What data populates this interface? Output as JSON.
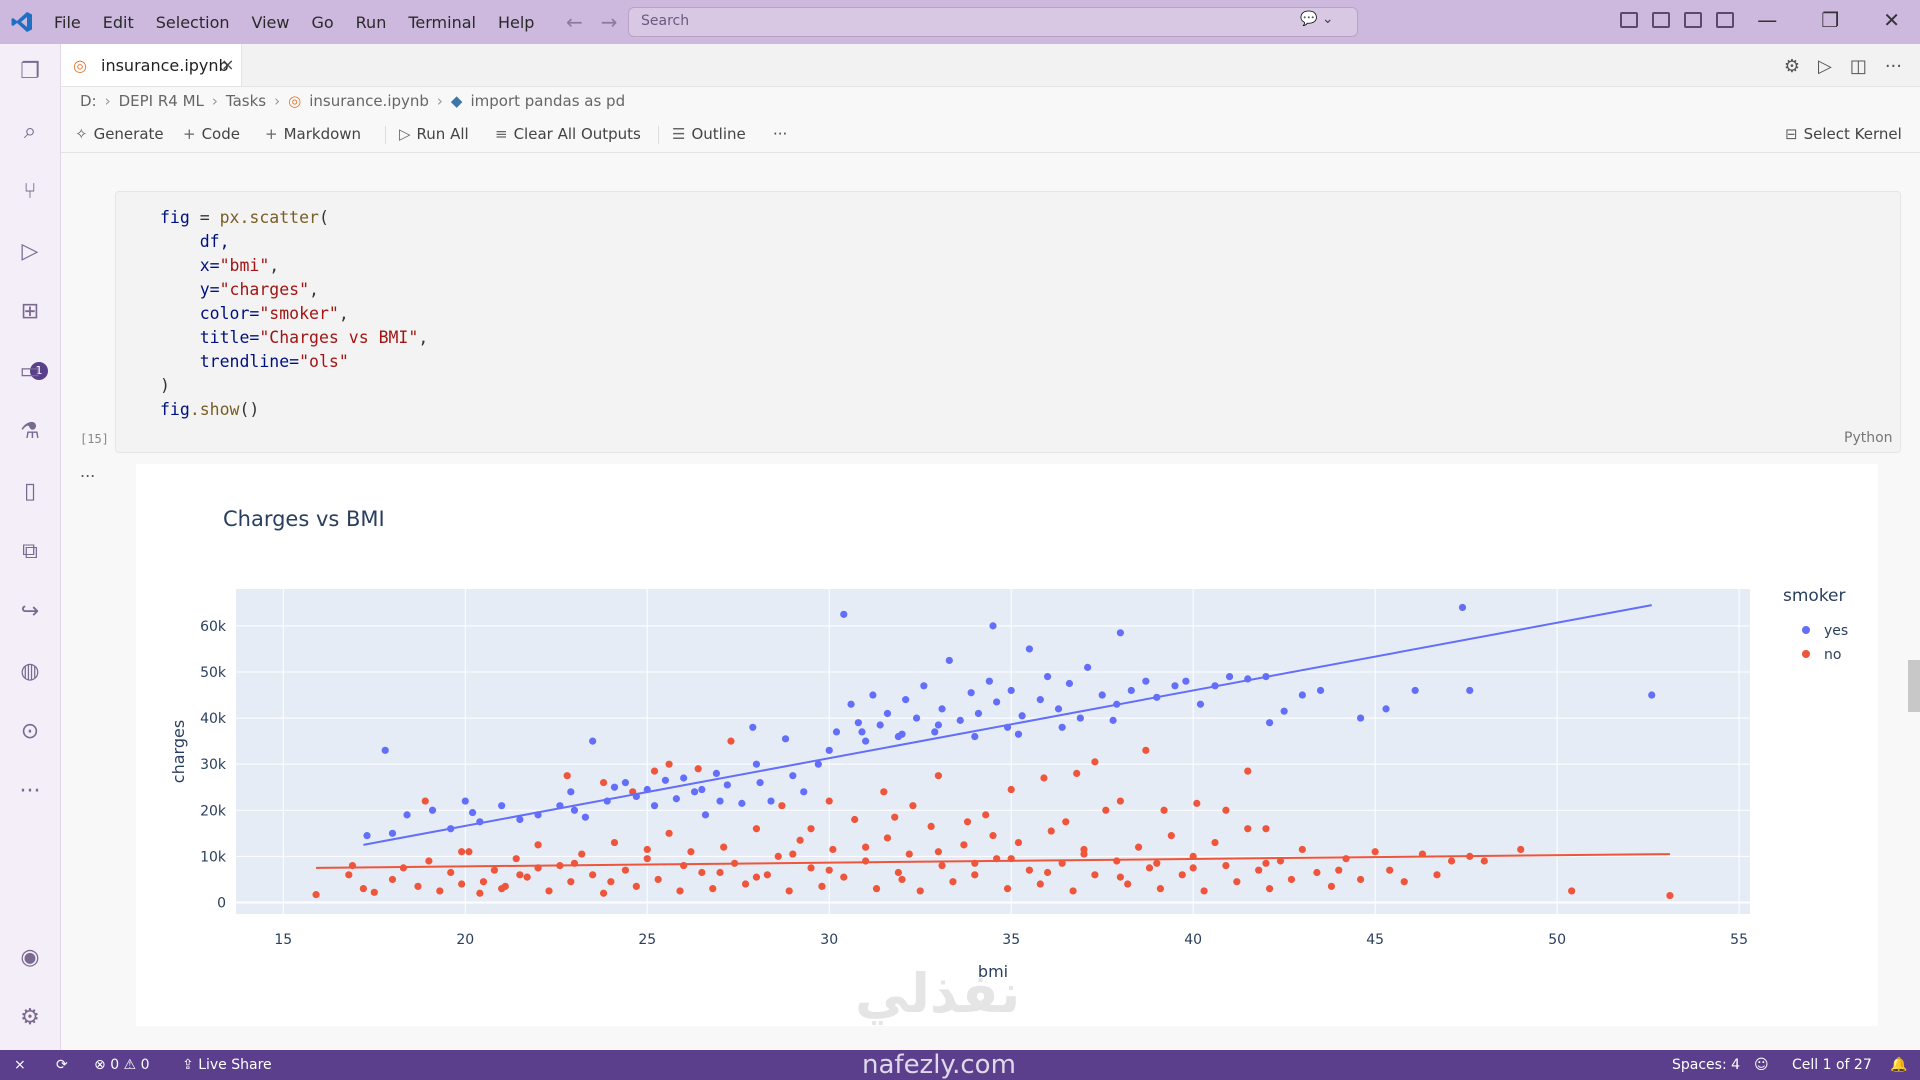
{
  "menu": [
    "File",
    "Edit",
    "Selection",
    "View",
    "Go",
    "Run",
    "Terminal",
    "Help"
  ],
  "search": {
    "placeholder": "Search"
  },
  "tab": {
    "label": "insurance.ipynb",
    "close": "×"
  },
  "breadcrumb": [
    "D:",
    "DEPI R4 ML",
    "Tasks",
    "insurance.ipynb",
    "import pandas as pd"
  ],
  "toolbar": {
    "generate": "Generate",
    "code": "Code",
    "markdown": "Markdown",
    "run_all": "Run All",
    "clear_outputs": "Clear All Outputs",
    "outline": "Outline",
    "more": "···",
    "select_kernel": "Select Kernel"
  },
  "cell": {
    "exec_count": "[15]",
    "language": "Python",
    "output_dots": "...",
    "code": {
      "l1_var": "fig",
      "l1_eq": " = ",
      "l1_fn": "px.scatter",
      "l1_paren": "(",
      "l2": "df,",
      "l3_p": "x=",
      "l3_v": "\"bmi\"",
      "l3_c": ",",
      "l4_p": "y=",
      "l4_v": "\"charges\"",
      "l4_c": ",",
      "l5_p": "color=",
      "l5_v": "\"smoker\"",
      "l5_c": ",",
      "l6_p": "title=",
      "l6_v": "\"Charges vs BMI\"",
      "l6_c": ",",
      "l7_p": "trendline=",
      "l7_v": "\"ols\"",
      "l8": ")",
      "l9_var": "fig",
      "l9_fn": ".show",
      "l9_paren": "()"
    }
  },
  "chart_data": {
    "type": "scatter",
    "title": "Charges vs BMI",
    "xlabel": "bmi",
    "ylabel": "charges",
    "xlim": [
      13.7,
      55.3
    ],
    "ylim": [
      -2500,
      68000
    ],
    "xticks": [
      15,
      20,
      25,
      30,
      35,
      40,
      45,
      50,
      55
    ],
    "yticks": [
      0,
      10000,
      20000,
      30000,
      40000,
      50000,
      60000
    ],
    "ytick_labels": [
      "0",
      "10k",
      "20k",
      "30k",
      "40k",
      "50k",
      "60k"
    ],
    "grid": true,
    "legend": {
      "title": "smoker",
      "placement": "right",
      "entries": [
        "yes",
        "no"
      ]
    },
    "series": [
      {
        "name": "yes",
        "color": "#636efa",
        "points": [
          [
            17.8,
            33000
          ],
          [
            17.3,
            14500
          ],
          [
            18.0,
            15000
          ],
          [
            18.4,
            19000
          ],
          [
            19.1,
            20000
          ],
          [
            19.6,
            16000
          ],
          [
            20.0,
            22000
          ],
          [
            20.2,
            19500
          ],
          [
            20.4,
            17500
          ],
          [
            21.0,
            21000
          ],
          [
            21.5,
            18000
          ],
          [
            22.0,
            19000
          ],
          [
            22.6,
            21000
          ],
          [
            22.9,
            24000
          ],
          [
            23.0,
            20000
          ],
          [
            23.3,
            18500
          ],
          [
            23.5,
            35000
          ],
          [
            23.9,
            22000
          ],
          [
            24.1,
            25000
          ],
          [
            24.4,
            26000
          ],
          [
            24.7,
            23000
          ],
          [
            25.0,
            24500
          ],
          [
            25.2,
            21000
          ],
          [
            25.5,
            26500
          ],
          [
            25.8,
            22500
          ],
          [
            26.0,
            27000
          ],
          [
            26.3,
            24000
          ],
          [
            26.6,
            19000
          ],
          [
            26.9,
            28000
          ],
          [
            27.2,
            25500
          ],
          [
            27.6,
            21500
          ],
          [
            27.9,
            38000
          ],
          [
            28.1,
            26000
          ],
          [
            28.4,
            22000
          ],
          [
            28.8,
            35500
          ],
          [
            29.0,
            27500
          ],
          [
            29.3,
            24000
          ],
          [
            29.7,
            30000
          ],
          [
            30.0,
            33000
          ],
          [
            30.2,
            37000
          ],
          [
            30.4,
            62500
          ],
          [
            30.6,
            43000
          ],
          [
            30.8,
            39000
          ],
          [
            31.0,
            35000
          ],
          [
            31.2,
            45000
          ],
          [
            31.4,
            38500
          ],
          [
            31.6,
            41000
          ],
          [
            31.9,
            36000
          ],
          [
            32.1,
            44000
          ],
          [
            32.4,
            40000
          ],
          [
            32.6,
            47000
          ],
          [
            32.9,
            37000
          ],
          [
            33.1,
            42000
          ],
          [
            33.3,
            52500
          ],
          [
            33.6,
            39500
          ],
          [
            33.9,
            45500
          ],
          [
            34.1,
            41000
          ],
          [
            34.4,
            48000
          ],
          [
            34.6,
            43500
          ],
          [
            34.9,
            38000
          ],
          [
            35.0,
            46000
          ],
          [
            35.3,
            40500
          ],
          [
            35.5,
            55000
          ],
          [
            35.8,
            44000
          ],
          [
            36.0,
            49000
          ],
          [
            36.3,
            42000
          ],
          [
            36.6,
            47500
          ],
          [
            36.9,
            40000
          ],
          [
            37.1,
            51000
          ],
          [
            37.5,
            45000
          ],
          [
            37.9,
            43000
          ],
          [
            38.0,
            58500
          ],
          [
            38.3,
            46000
          ],
          [
            38.7,
            48000
          ],
          [
            39.0,
            44500
          ],
          [
            39.5,
            47000
          ],
          [
            39.8,
            48000
          ],
          [
            40.2,
            43000
          ],
          [
            40.6,
            47000
          ],
          [
            41.0,
            49000
          ],
          [
            41.5,
            48500
          ],
          [
            42.0,
            49000
          ],
          [
            42.1,
            39000
          ],
          [
            42.5,
            41500
          ],
          [
            43.0,
            45000
          ],
          [
            43.5,
            46000
          ],
          [
            44.6,
            40000
          ],
          [
            45.3,
            42000
          ],
          [
            46.1,
            46000
          ],
          [
            47.4,
            64000
          ],
          [
            47.6,
            46000
          ],
          [
            52.6,
            45000
          ],
          [
            34.5,
            60000
          ],
          [
            30.9,
            37000
          ],
          [
            32.0,
            36500
          ],
          [
            33.0,
            38500
          ],
          [
            34.0,
            36000
          ],
          [
            35.2,
            36500
          ],
          [
            36.4,
            38000
          ],
          [
            37.8,
            39500
          ],
          [
            26.5,
            24500
          ],
          [
            27.0,
            22000
          ],
          [
            28.0,
            30000
          ]
        ]
      },
      {
        "name": "no",
        "color": "#ef553b",
        "points": [
          [
            15.9,
            1700
          ],
          [
            16.8,
            6000
          ],
          [
            17.2,
            3000
          ],
          [
            17.5,
            2200
          ],
          [
            18.0,
            5000
          ],
          [
            18.3,
            7500
          ],
          [
            18.7,
            3500
          ],
          [
            19.0,
            9000
          ],
          [
            19.3,
            2500
          ],
          [
            19.6,
            6500
          ],
          [
            19.9,
            4000
          ],
          [
            20.1,
            11000
          ],
          [
            20.4,
            2000
          ],
          [
            20.8,
            7000
          ],
          [
            21.1,
            3500
          ],
          [
            21.4,
            9500
          ],
          [
            21.7,
            5500
          ],
          [
            22.0,
            12500
          ],
          [
            22.3,
            2500
          ],
          [
            22.6,
            8000
          ],
          [
            22.9,
            4500
          ],
          [
            23.2,
            10500
          ],
          [
            23.5,
            6000
          ],
          [
            23.8,
            2000
          ],
          [
            24.1,
            13000
          ],
          [
            24.4,
            7000
          ],
          [
            24.7,
            3500
          ],
          [
            25.0,
            9500
          ],
          [
            25.3,
            5000
          ],
          [
            25.6,
            15000
          ],
          [
            25.9,
            2500
          ],
          [
            26.2,
            11000
          ],
          [
            26.5,
            6500
          ],
          [
            26.8,
            3000
          ],
          [
            27.1,
            12000
          ],
          [
            27.4,
            8500
          ],
          [
            27.7,
            4000
          ],
          [
            28.0,
            16000
          ],
          [
            28.3,
            6000
          ],
          [
            28.6,
            10000
          ],
          [
            28.9,
            2500
          ],
          [
            29.2,
            13500
          ],
          [
            29.5,
            7500
          ],
          [
            29.8,
            3500
          ],
          [
            30.1,
            11500
          ],
          [
            30.4,
            5500
          ],
          [
            30.7,
            18000
          ],
          [
            31.0,
            9000
          ],
          [
            31.3,
            3000
          ],
          [
            31.6,
            14000
          ],
          [
            31.9,
            6500
          ],
          [
            32.2,
            10500
          ],
          [
            32.5,
            2500
          ],
          [
            32.8,
            16500
          ],
          [
            33.1,
            8000
          ],
          [
            33.4,
            4500
          ],
          [
            33.7,
            12500
          ],
          [
            34.0,
            6000
          ],
          [
            34.3,
            19000
          ],
          [
            34.6,
            9500
          ],
          [
            34.9,
            3000
          ],
          [
            35.2,
            13000
          ],
          [
            35.5,
            7000
          ],
          [
            35.8,
            4000
          ],
          [
            36.1,
            15500
          ],
          [
            36.4,
            8500
          ],
          [
            36.7,
            2500
          ],
          [
            37.0,
            11500
          ],
          [
            37.3,
            6000
          ],
          [
            37.6,
            20000
          ],
          [
            37.9,
            9000
          ],
          [
            38.2,
            4000
          ],
          [
            38.5,
            12000
          ],
          [
            38.8,
            7500
          ],
          [
            39.1,
            3000
          ],
          [
            39.4,
            14500
          ],
          [
            39.7,
            6000
          ],
          [
            40.0,
            10000
          ],
          [
            40.3,
            2500
          ],
          [
            40.6,
            13000
          ],
          [
            40.9,
            8000
          ],
          [
            41.2,
            4500
          ],
          [
            41.5,
            16000
          ],
          [
            41.8,
            7000
          ],
          [
            42.1,
            3000
          ],
          [
            42.4,
            9000
          ],
          [
            42.7,
            5000
          ],
          [
            43.0,
            11500
          ],
          [
            43.4,
            6500
          ],
          [
            43.8,
            3500
          ],
          [
            44.2,
            9500
          ],
          [
            44.6,
            5000
          ],
          [
            45.0,
            11000
          ],
          [
            45.4,
            7000
          ],
          [
            45.8,
            4500
          ],
          [
            46.3,
            10500
          ],
          [
            46.7,
            6000
          ],
          [
            47.1,
            9000
          ],
          [
            47.6,
            10000
          ],
          [
            48.0,
            9000
          ],
          [
            49.0,
            11500
          ],
          [
            50.4,
            2500
          ],
          [
            53.1,
            1500
          ],
          [
            22.8,
            27500
          ],
          [
            23.8,
            26000
          ],
          [
            24.6,
            24000
          ],
          [
            25.2,
            28500
          ],
          [
            25.6,
            30000
          ],
          [
            26.4,
            29000
          ],
          [
            27.3,
            35000
          ],
          [
            28.7,
            21000
          ],
          [
            30.0,
            22000
          ],
          [
            31.5,
            24000
          ],
          [
            32.3,
            21000
          ],
          [
            33.0,
            27500
          ],
          [
            33.8,
            17500
          ],
          [
            35.0,
            24500
          ],
          [
            35.9,
            27000
          ],
          [
            36.8,
            28000
          ],
          [
            37.3,
            30500
          ],
          [
            38.0,
            22000
          ],
          [
            38.7,
            33000
          ],
          [
            39.2,
            20000
          ],
          [
            40.1,
            21500
          ],
          [
            40.9,
            20000
          ],
          [
            41.5,
            28500
          ],
          [
            42.0,
            16000
          ],
          [
            16.9,
            8000
          ],
          [
            18.9,
            22000
          ],
          [
            19.9,
            11000
          ],
          [
            21.0,
            3000
          ],
          [
            22.0,
            7500
          ],
          [
            24.0,
            4500
          ],
          [
            26.0,
            8000
          ],
          [
            28.0,
            5500
          ],
          [
            30.0,
            7000
          ],
          [
            32.0,
            5000
          ],
          [
            34.0,
            8500
          ],
          [
            36.0,
            6500
          ],
          [
            38.0,
            5500
          ],
          [
            40.0,
            7500
          ],
          [
            42.0,
            8500
          ],
          [
            44.0,
            7000
          ],
          [
            29.0,
            10500
          ],
          [
            31.0,
            12000
          ],
          [
            33.0,
            11000
          ],
          [
            35.0,
            9500
          ],
          [
            37.0,
            10500
          ],
          [
            39.0,
            8500
          ],
          [
            27.0,
            6500
          ],
          [
            25.0,
            11500
          ],
          [
            23.0,
            8500
          ],
          [
            21.5,
            6000
          ],
          [
            20.5,
            4500
          ],
          [
            29.5,
            16000
          ],
          [
            34.5,
            14500
          ],
          [
            36.5,
            17500
          ],
          [
            31.8,
            18500
          ]
        ]
      }
    ],
    "trendlines": [
      {
        "name": "yes",
        "color": "#636efa",
        "from": [
          17.2,
          12500
        ],
        "to": [
          52.6,
          64500
        ]
      },
      {
        "name": "no",
        "color": "#ef553b",
        "from": [
          15.9,
          7500
        ],
        "to": [
          53.1,
          10500
        ]
      }
    ]
  },
  "status": {
    "errors": "0",
    "warnings": "0",
    "live_share": "Live Share",
    "spaces": "Spaces: 4",
    "cell": "Cell 1 of 27"
  },
  "watermark": {
    "arabic": "نفذلي",
    "latin": "nafezly.com"
  }
}
